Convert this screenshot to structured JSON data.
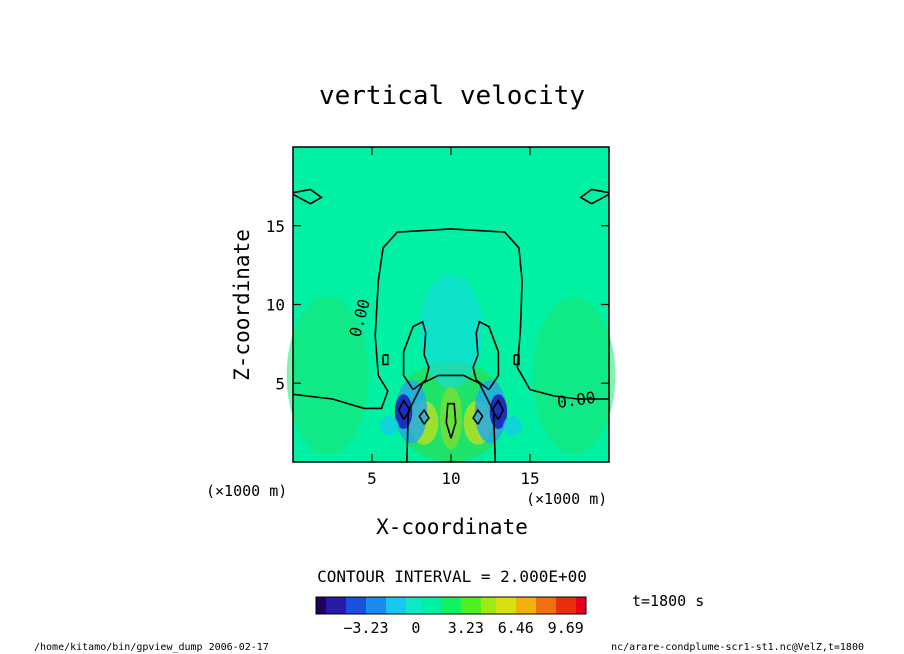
{
  "chart_data": {
    "type": "heatmap",
    "title": "vertical velocity",
    "xlabel": "X-coordinate",
    "ylabel": "Z-coordinate",
    "xlim": [
      0,
      20
    ],
    "ylim": [
      0,
      20
    ],
    "x_ticks": [
      5,
      10,
      15
    ],
    "y_ticks": [
      5,
      10,
      15
    ],
    "x_tick_labels": [
      "5",
      "10",
      "15"
    ],
    "y_tick_labels": [
      "5",
      "10",
      "15"
    ],
    "x_unit_label": "(×1000 m)",
    "y_unit_label": "(×1000 m)",
    "contour_interval_text": "CONTOUR INTERVAL = 2.000E+00",
    "contour_labels": [
      "0.00",
      "0.00"
    ],
    "colorbar": {
      "tick_values": [
        -3.23,
        0,
        3.23,
        6.46,
        9.69
      ],
      "tick_labels": [
        "−3.23",
        "0",
        "3.23",
        "6.46",
        "9.69"
      ],
      "min": -6.46,
      "max": 11.0
    },
    "time_label": "t=1800 s",
    "grid": false,
    "legend": "bottom"
  },
  "footer": {
    "left": "/home/kitamo/bin/gpview_dump  2006-02-17",
    "right": "nc/arare-condplume-scr1-st1.nc@VelZ,t=1800"
  }
}
